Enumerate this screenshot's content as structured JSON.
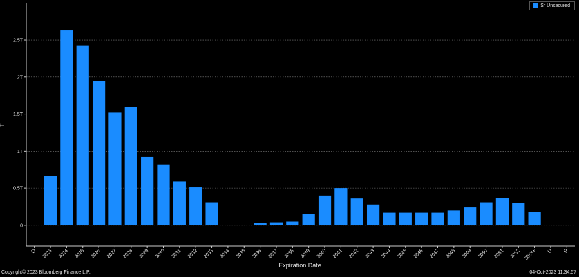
{
  "colors": {
    "bar": "#1a8cff",
    "background": "#000000",
    "grid": "#808080",
    "text": "#e6e6e6"
  },
  "chart_data": {
    "type": "bar",
    "xlabel": "Expiration Date",
    "ylabel": "T",
    "ylim": [
      -0.28,
      2.9
    ],
    "yticks": [
      {
        "value": 0,
        "label": "0"
      },
      {
        "value": 0.5,
        "label": "0.5T"
      },
      {
        "value": 1,
        "label": "1T"
      },
      {
        "value": 1.5,
        "label": "1.5T"
      },
      {
        "value": 2,
        "label": "2T"
      },
      {
        "value": 2.5,
        "label": "2.5T"
      }
    ],
    "grid": true,
    "legend_position": "top-right",
    "series": [
      {
        "name": "Sr Unsecured",
        "color": "#1a8cff",
        "categories": [
          "D",
          "2023",
          "2024",
          "2025",
          "2026",
          "2027",
          "2028",
          "2029",
          "2030",
          "2031",
          "2032",
          "2033",
          "2034",
          "2035",
          "2036",
          "2037",
          "2038",
          "2039",
          "2040",
          "2041",
          "2042",
          "2043",
          "2044",
          "2045",
          "2046",
          "2047",
          "2048",
          "2049",
          "2050",
          "2051",
          "2052",
          "2053+",
          "U",
          "P"
        ],
        "values": [
          0,
          0.66,
          2.63,
          2.42,
          1.95,
          1.52,
          1.59,
          0.92,
          0.82,
          0.59,
          0.51,
          0.31,
          0,
          0,
          0.03,
          0.04,
          0.05,
          0.15,
          0.4,
          0.5,
          0.36,
          0.28,
          0.17,
          0.17,
          0.17,
          0.17,
          0.2,
          0.24,
          0.31,
          0.37,
          0.3,
          0.18,
          0,
          0
        ]
      }
    ]
  },
  "footer": {
    "copyright": "Copyright© 2023 Bloomberg Finance L.P.",
    "timestamp": "04-Oct-2023 11:34:57"
  }
}
